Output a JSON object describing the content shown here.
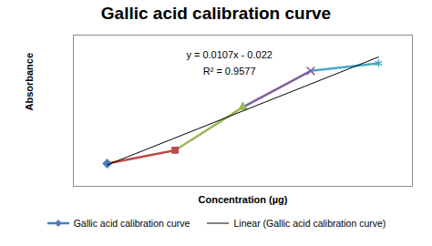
{
  "chart_data": {
    "type": "line",
    "title": "Gallic acid calibration curve",
    "x_label": "Concentration (µg)",
    "y_label": "Absorbance",
    "x": [
      10,
      20,
      30,
      40,
      50
    ],
    "series": [
      {
        "name": "Gallic acid calibration curve",
        "color": "#4a7ebb",
        "colors": [
          "#4a7ebb",
          "#be4b48",
          "#98b954",
          "#7d5fa0",
          "#46aac5"
        ],
        "marker": "varied",
        "values": [
          0.09,
          0.143,
          0.314,
          0.458,
          0.488
        ]
      },
      {
        "name": "Linear (Gallic acid calibration curve)",
        "type": "trendline",
        "color": "#000000",
        "line_style": "solid",
        "x": [
          10,
          50
        ],
        "values": [
          0.085,
          0.513
        ]
      }
    ],
    "annotations": [
      "y = 0.0107x - 0.022",
      "R² = 0.9577"
    ],
    "xlim": [
      5,
      55
    ],
    "ylim": [
      0,
      0.6
    ],
    "xticks": [],
    "yticks": [],
    "grid": false,
    "tick_labels": false,
    "legend": "bottom"
  }
}
